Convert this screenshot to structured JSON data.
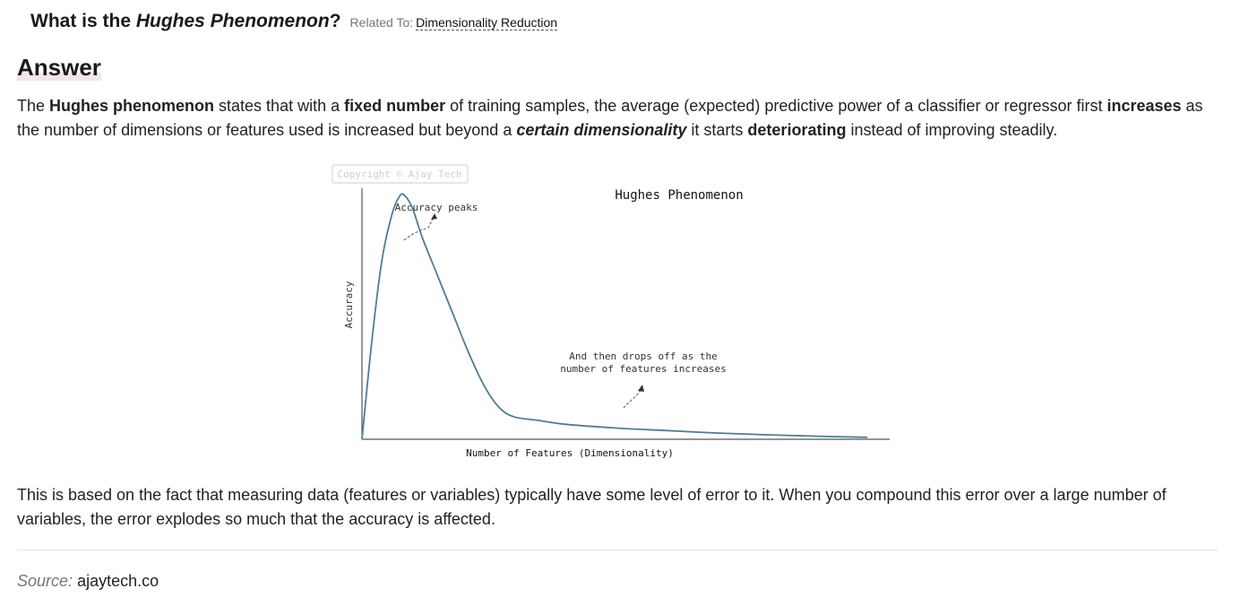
{
  "question": {
    "prefix": "What is the",
    "term": "Hughes Phenomenon",
    "suffix": "?",
    "related_label": "Related To:",
    "related_link": "Dimensionality Reduction"
  },
  "answer": {
    "heading": "Answer",
    "p1": [
      {
        "t": "The ",
        "b": false,
        "i": false
      },
      {
        "t": "Hughes phenomenon",
        "b": true,
        "i": false
      },
      {
        "t": " states that with a ",
        "b": false,
        "i": false
      },
      {
        "t": "fixed number",
        "b": true,
        "i": false
      },
      {
        "t": " of training samples, the average (expected) predictive power of a classifier or regressor first ",
        "b": false,
        "i": false
      },
      {
        "t": "increases",
        "b": true,
        "i": false
      },
      {
        "t": " as the number of dimensions or features used is increased but beyond a ",
        "b": false,
        "i": false
      },
      {
        "t": "certain dimensionality",
        "b": true,
        "i": true
      },
      {
        "t": " it starts ",
        "b": false,
        "i": false
      },
      {
        "t": "deteriorating",
        "b": true,
        "i": false
      },
      {
        "t": " instead of improving steadily.",
        "b": false,
        "i": false
      }
    ],
    "p2": "This is based on the fact that measuring data (features or variables) typically have some level of error to it. When you compound this error over a large number of variables, the error explodes so much that the accuracy is affected."
  },
  "source": {
    "label": "Source:",
    "value": "ajaytech.co"
  },
  "chart_data": {
    "type": "line",
    "title": "Hughes Phenomenon",
    "xlabel": "Number of Features (Dimensionality)",
    "ylabel": "Accuracy",
    "watermark": "Copyright © Ajay Tech",
    "annotations": [
      "Accuracy peaks",
      "And then drops off as the",
      "number of features increases"
    ],
    "xlim": [
      0,
      100
    ],
    "ylim": [
      0,
      100
    ],
    "grid": false,
    "x": [
      0,
      2,
      4,
      6,
      7.5,
      8.5,
      10,
      12,
      15,
      18,
      21,
      24,
      27,
      30,
      35,
      40,
      50,
      60,
      70,
      80,
      90,
      100
    ],
    "y": [
      0,
      40,
      72,
      90,
      97,
      97,
      92,
      80,
      65,
      50,
      35,
      22,
      13,
      9,
      7.5,
      6,
      4.5,
      3.5,
      2.5,
      1.8,
      1.2,
      0.8
    ],
    "series_color": "#4c7e91"
  }
}
